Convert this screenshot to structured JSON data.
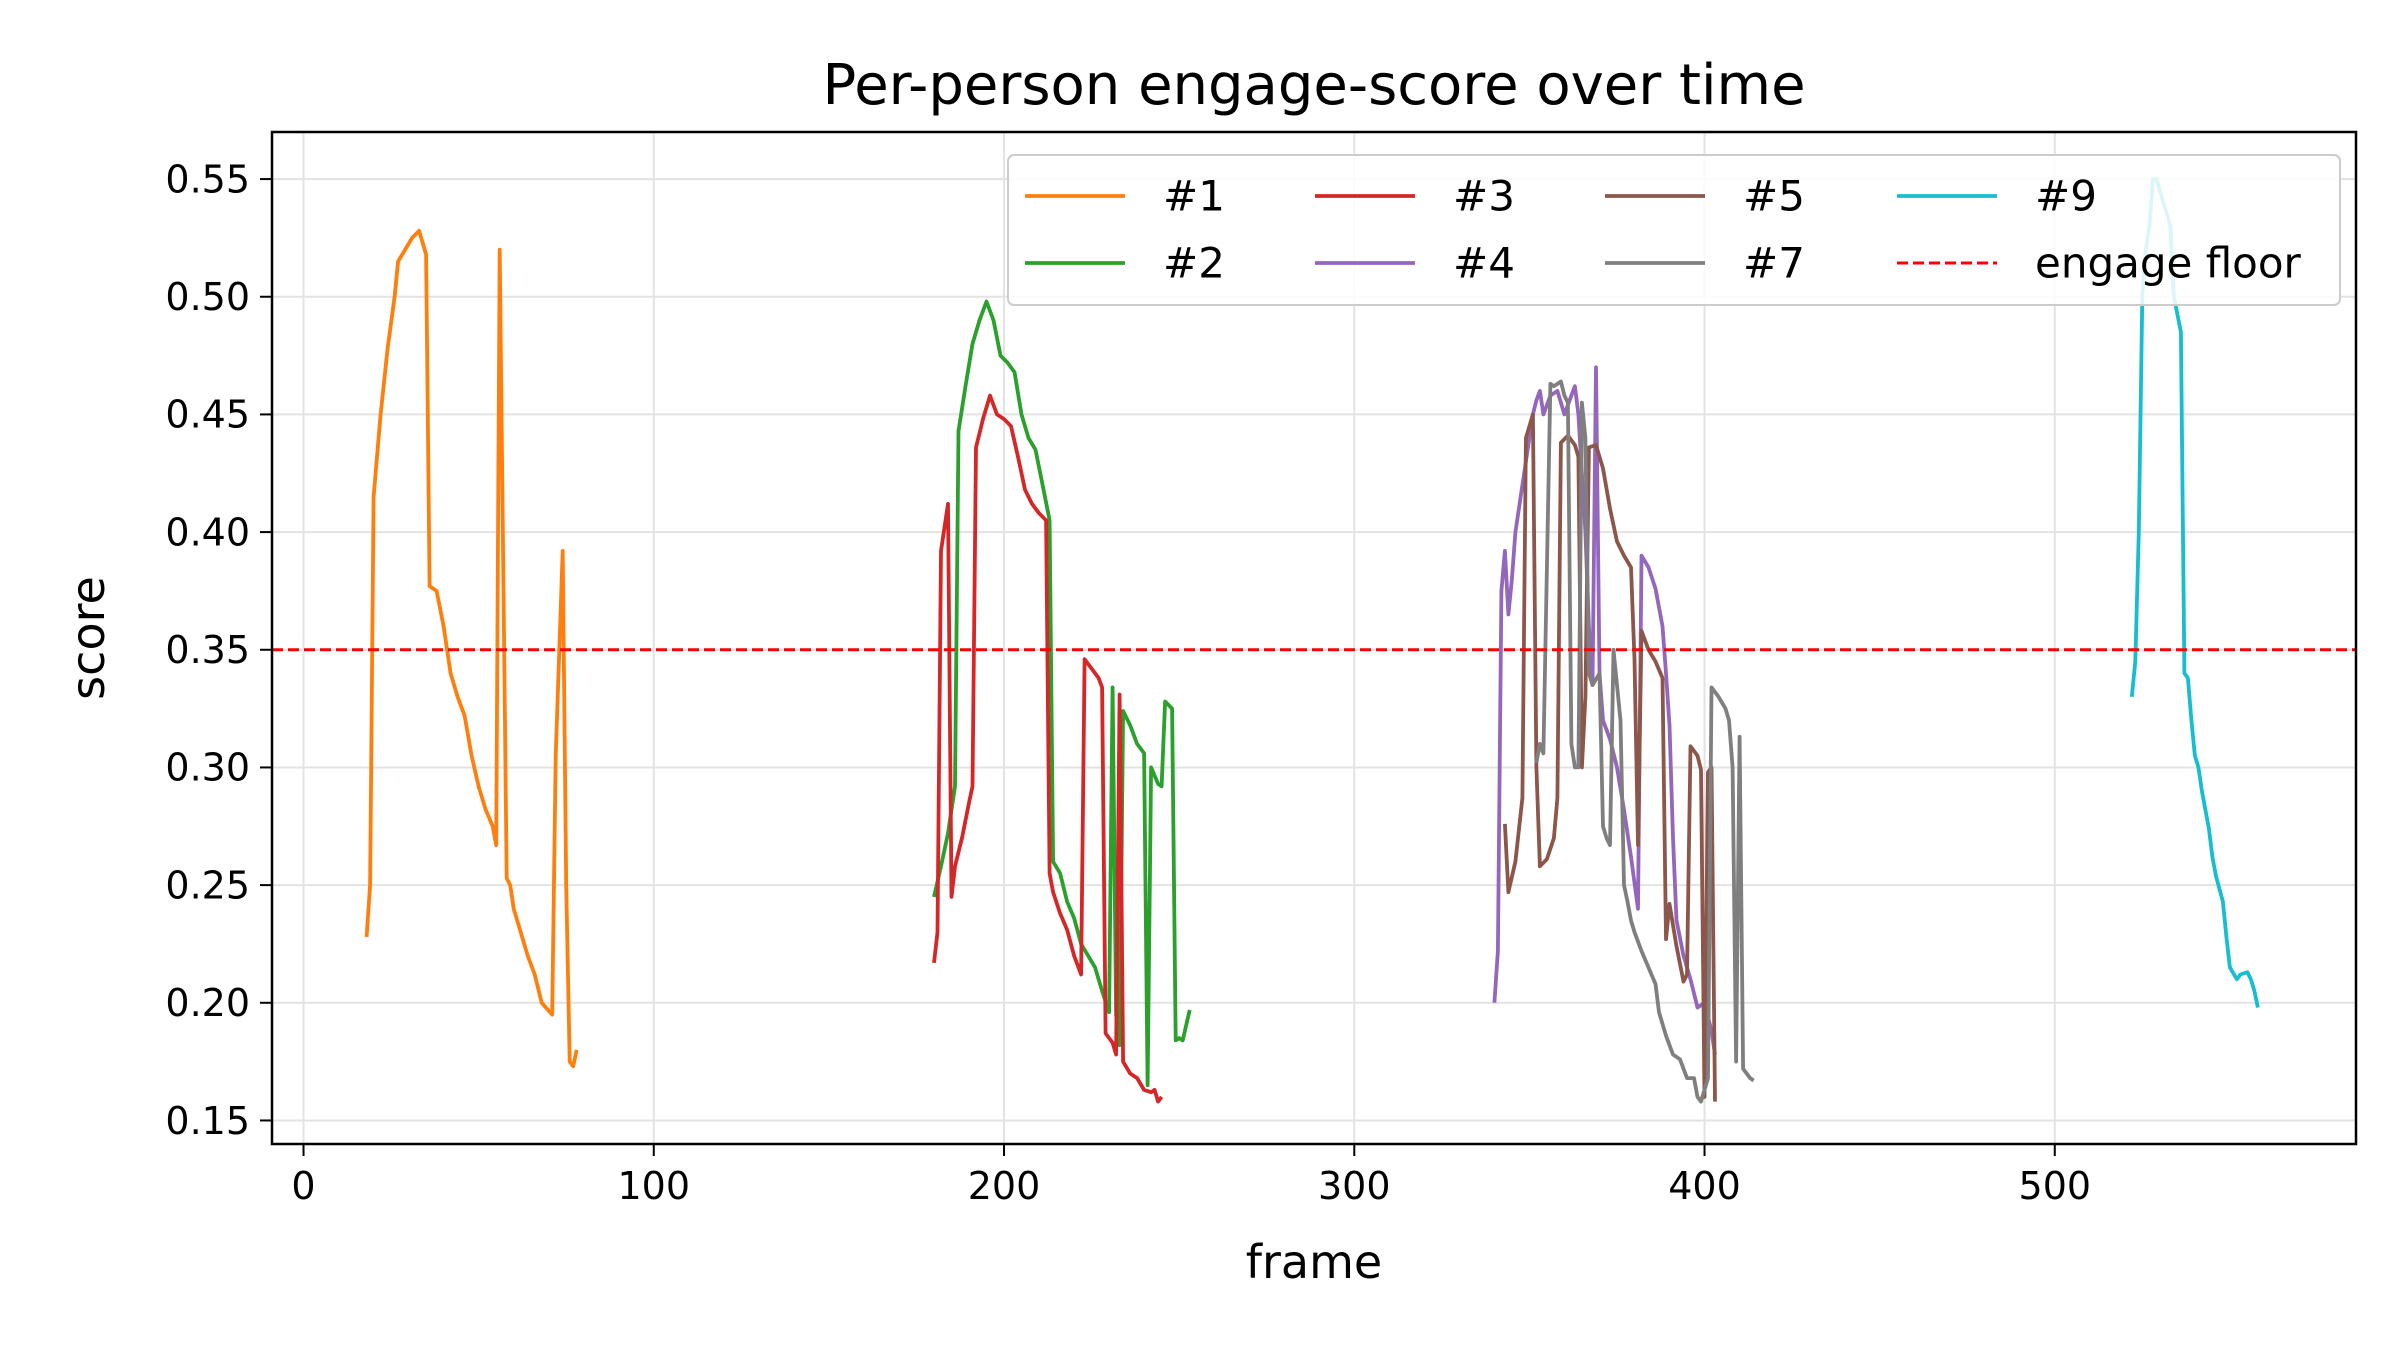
{
  "chart_data": {
    "type": "line",
    "title": "Per-person engage-score over time",
    "xlabel": "frame",
    "ylabel": "score",
    "xlim": [
      -9,
      586
    ],
    "ylim": [
      0.14,
      0.57
    ],
    "xticks": [
      0,
      100,
      200,
      300,
      400,
      500
    ],
    "yticks": [
      0.15,
      0.2,
      0.25,
      0.3,
      0.35,
      0.4,
      0.45,
      0.5,
      0.55
    ],
    "grid": true,
    "legend_position": "top-right",
    "legend_columns": 4,
    "threshold": {
      "name": "engage floor",
      "value": 0.35,
      "color": "#ff0000",
      "style": "dashed"
    },
    "series": [
      {
        "name": "#1",
        "color": "#ff7f0e",
        "points": [
          [
            18,
            0.228
          ],
          [
            19,
            0.25
          ],
          [
            20,
            0.415
          ],
          [
            22,
            0.45
          ],
          [
            24,
            0.478
          ],
          [
            26,
            0.5
          ],
          [
            27,
            0.515
          ],
          [
            29,
            0.52
          ],
          [
            31,
            0.525
          ],
          [
            33,
            0.528
          ],
          [
            35,
            0.518
          ],
          [
            36,
            0.377
          ],
          [
            38,
            0.375
          ],
          [
            40,
            0.36
          ],
          [
            42,
            0.34
          ],
          [
            44,
            0.33
          ],
          [
            46,
            0.322
          ],
          [
            48,
            0.305
          ],
          [
            50,
            0.292
          ],
          [
            52,
            0.282
          ],
          [
            54,
            0.275
          ],
          [
            55,
            0.267
          ],
          [
            56,
            0.52
          ],
          [
            58,
            0.253
          ],
          [
            59,
            0.25
          ],
          [
            60,
            0.24
          ],
          [
            62,
            0.23
          ],
          [
            64,
            0.22
          ],
          [
            66,
            0.212
          ],
          [
            68,
            0.2
          ],
          [
            71,
            0.195
          ],
          [
            72,
            0.305
          ],
          [
            74,
            0.392
          ],
          [
            75,
            0.25
          ],
          [
            76,
            0.175
          ],
          [
            77,
            0.173
          ],
          [
            78,
            0.18
          ]
        ]
      },
      {
        "name": "#2",
        "color": "#2ca02c",
        "points": [
          [
            180,
            0.245
          ],
          [
            182,
            0.258
          ],
          [
            184,
            0.272
          ],
          [
            186,
            0.292
          ],
          [
            187,
            0.443
          ],
          [
            189,
            0.462
          ],
          [
            191,
            0.48
          ],
          [
            193,
            0.49
          ],
          [
            195,
            0.498
          ],
          [
            197,
            0.49
          ],
          [
            199,
            0.475
          ],
          [
            201,
            0.472
          ],
          [
            203,
            0.468
          ],
          [
            205,
            0.45
          ],
          [
            207,
            0.44
          ],
          [
            209,
            0.435
          ],
          [
            211,
            0.42
          ],
          [
            213,
            0.405
          ],
          [
            214,
            0.26
          ],
          [
            216,
            0.255
          ],
          [
            218,
            0.243
          ],
          [
            220,
            0.236
          ],
          [
            222,
            0.225
          ],
          [
            224,
            0.22
          ],
          [
            226,
            0.215
          ],
          [
            228,
            0.205
          ],
          [
            230,
            0.196
          ],
          [
            231,
            0.334
          ],
          [
            232,
            0.195
          ],
          [
            233,
            0.182
          ],
          [
            234,
            0.324
          ],
          [
            236,
            0.318
          ],
          [
            238,
            0.31
          ],
          [
            240,
            0.306
          ],
          [
            241,
            0.165
          ],
          [
            242,
            0.3
          ],
          [
            244,
            0.293
          ],
          [
            245,
            0.292
          ],
          [
            246,
            0.328
          ],
          [
            248,
            0.325
          ],
          [
            249,
            0.184
          ],
          [
            250,
            0.185
          ],
          [
            251,
            0.184
          ],
          [
            253,
            0.197
          ]
        ]
      },
      {
        "name": "#3",
        "color": "#d62728",
        "points": [
          [
            180,
            0.217
          ],
          [
            181,
            0.23
          ],
          [
            182,
            0.392
          ],
          [
            184,
            0.412
          ],
          [
            185,
            0.245
          ],
          [
            186,
            0.258
          ],
          [
            188,
            0.27
          ],
          [
            190,
            0.285
          ],
          [
            191,
            0.292
          ],
          [
            192,
            0.436
          ],
          [
            194,
            0.448
          ],
          [
            196,
            0.458
          ],
          [
            198,
            0.45
          ],
          [
            200,
            0.448
          ],
          [
            202,
            0.445
          ],
          [
            204,
            0.432
          ],
          [
            206,
            0.418
          ],
          [
            208,
            0.412
          ],
          [
            210,
            0.408
          ],
          [
            212,
            0.405
          ],
          [
            213,
            0.255
          ],
          [
            214,
            0.247
          ],
          [
            216,
            0.238
          ],
          [
            218,
            0.231
          ],
          [
            220,
            0.22
          ],
          [
            222,
            0.212
          ],
          [
            223,
            0.346
          ],
          [
            225,
            0.342
          ],
          [
            227,
            0.338
          ],
          [
            228,
            0.334
          ],
          [
            229,
            0.187
          ],
          [
            231,
            0.183
          ],
          [
            232,
            0.178
          ],
          [
            233,
            0.331
          ],
          [
            234,
            0.175
          ],
          [
            236,
            0.17
          ],
          [
            238,
            0.168
          ],
          [
            240,
            0.163
          ],
          [
            242,
            0.162
          ],
          [
            243,
            0.163
          ],
          [
            244,
            0.158
          ],
          [
            245,
            0.16
          ]
        ]
      },
      {
        "name": "#4",
        "color": "#9467bd",
        "points": [
          [
            340,
            0.2
          ],
          [
            341,
            0.222
          ],
          [
            342,
            0.375
          ],
          [
            343,
            0.392
          ],
          [
            344,
            0.365
          ],
          [
            345,
            0.38
          ],
          [
            346,
            0.4
          ],
          [
            347,
            0.41
          ],
          [
            349,
            0.43
          ],
          [
            350,
            0.44
          ],
          [
            351,
            0.45
          ],
          [
            352,
            0.456
          ],
          [
            353,
            0.46
          ],
          [
            354,
            0.45
          ],
          [
            356,
            0.458
          ],
          [
            358,
            0.46
          ],
          [
            359,
            0.455
          ],
          [
            360,
            0.45
          ],
          [
            362,
            0.458
          ],
          [
            363,
            0.462
          ],
          [
            364,
            0.45
          ],
          [
            366,
            0.4
          ],
          [
            367,
            0.36
          ],
          [
            368,
            0.335
          ],
          [
            369,
            0.47
          ],
          [
            370,
            0.34
          ],
          [
            371,
            0.32
          ],
          [
            373,
            0.312
          ],
          [
            375,
            0.3
          ],
          [
            377,
            0.282
          ],
          [
            379,
            0.262
          ],
          [
            381,
            0.24
          ],
          [
            382,
            0.39
          ],
          [
            384,
            0.385
          ],
          [
            386,
            0.376
          ],
          [
            388,
            0.36
          ],
          [
            389,
            0.34
          ],
          [
            390,
            0.318
          ],
          [
            391,
            0.27
          ],
          [
            392,
            0.235
          ],
          [
            394,
            0.22
          ],
          [
            396,
            0.21
          ],
          [
            398,
            0.198
          ],
          [
            400,
            0.2
          ],
          [
            402,
            0.188
          ],
          [
            403,
            0.178
          ]
        ]
      },
      {
        "name": "#5",
        "color": "#8c564b",
        "points": [
          [
            343,
            0.276
          ],
          [
            344,
            0.247
          ],
          [
            346,
            0.26
          ],
          [
            348,
            0.287
          ],
          [
            349,
            0.44
          ],
          [
            351,
            0.45
          ],
          [
            352,
            0.3
          ],
          [
            353,
            0.258
          ],
          [
            355,
            0.261
          ],
          [
            357,
            0.27
          ],
          [
            358,
            0.287
          ],
          [
            359,
            0.438
          ],
          [
            361,
            0.441
          ],
          [
            363,
            0.437
          ],
          [
            364,
            0.432
          ],
          [
            365,
            0.3
          ],
          [
            366,
            0.33
          ],
          [
            367,
            0.436
          ],
          [
            369,
            0.437
          ],
          [
            371,
            0.427
          ],
          [
            373,
            0.41
          ],
          [
            375,
            0.396
          ],
          [
            377,
            0.39
          ],
          [
            379,
            0.385
          ],
          [
            380,
            0.346
          ],
          [
            381,
            0.267
          ],
          [
            382,
            0.358
          ],
          [
            384,
            0.35
          ],
          [
            386,
            0.345
          ],
          [
            388,
            0.338
          ],
          [
            389,
            0.227
          ],
          [
            390,
            0.242
          ],
          [
            392,
            0.224
          ],
          [
            394,
            0.209
          ],
          [
            395,
            0.212
          ],
          [
            396,
            0.309
          ],
          [
            398,
            0.305
          ],
          [
            399,
            0.299
          ],
          [
            400,
            0.16
          ],
          [
            401,
            0.298
          ],
          [
            402,
            0.3
          ],
          [
            403,
            0.158
          ]
        ]
      },
      {
        "name": "#7",
        "color": "#7f7f7f",
        "points": [
          [
            352,
            0.302
          ],
          [
            353,
            0.31
          ],
          [
            354,
            0.306
          ],
          [
            356,
            0.463
          ],
          [
            357,
            0.462
          ],
          [
            359,
            0.464
          ],
          [
            360,
            0.458
          ],
          [
            361,
            0.455
          ],
          [
            362,
            0.31
          ],
          [
            363,
            0.3
          ],
          [
            364,
            0.3
          ],
          [
            365,
            0.455
          ],
          [
            366,
            0.44
          ],
          [
            367,
            0.34
          ],
          [
            368,
            0.335
          ],
          [
            370,
            0.34
          ],
          [
            371,
            0.275
          ],
          [
            372,
            0.27
          ],
          [
            373,
            0.267
          ],
          [
            374,
            0.35
          ],
          [
            376,
            0.32
          ],
          [
            377,
            0.25
          ],
          [
            378,
            0.243
          ],
          [
            379,
            0.235
          ],
          [
            380,
            0.23
          ],
          [
            382,
            0.222
          ],
          [
            384,
            0.215
          ],
          [
            386,
            0.208
          ],
          [
            387,
            0.196
          ],
          [
            389,
            0.186
          ],
          [
            391,
            0.178
          ],
          [
            393,
            0.176
          ],
          [
            395,
            0.168
          ],
          [
            397,
            0.168
          ],
          [
            398,
            0.16
          ],
          [
            399,
            0.158
          ],
          [
            401,
            0.168
          ],
          [
            402,
            0.334
          ],
          [
            404,
            0.33
          ],
          [
            406,
            0.325
          ],
          [
            407,
            0.32
          ],
          [
            408,
            0.3
          ],
          [
            409,
            0.175
          ],
          [
            410,
            0.313
          ],
          [
            411,
            0.172
          ],
          [
            413,
            0.168
          ],
          [
            414,
            0.167
          ]
        ]
      },
      {
        "name": "#9",
        "color": "#17becf",
        "points": [
          [
            522,
            0.33
          ],
          [
            523,
            0.345
          ],
          [
            524,
            0.4
          ],
          [
            525,
            0.5
          ],
          [
            526,
            0.52
          ],
          [
            527,
            0.53
          ],
          [
            528,
            0.55
          ],
          [
            529,
            0.55
          ],
          [
            531,
            0.54
          ],
          [
            533,
            0.53
          ],
          [
            534,
            0.5
          ],
          [
            536,
            0.485
          ],
          [
            537,
            0.34
          ],
          [
            538,
            0.338
          ],
          [
            539,
            0.32
          ],
          [
            540,
            0.305
          ],
          [
            541,
            0.3
          ],
          [
            542,
            0.29
          ],
          [
            544,
            0.274
          ],
          [
            545,
            0.262
          ],
          [
            546,
            0.254
          ],
          [
            548,
            0.243
          ],
          [
            549,
            0.228
          ],
          [
            550,
            0.215
          ],
          [
            552,
            0.21
          ],
          [
            553,
            0.212
          ],
          [
            555,
            0.213
          ],
          [
            556,
            0.21
          ],
          [
            557,
            0.205
          ],
          [
            558,
            0.198
          ]
        ]
      }
    ]
  }
}
